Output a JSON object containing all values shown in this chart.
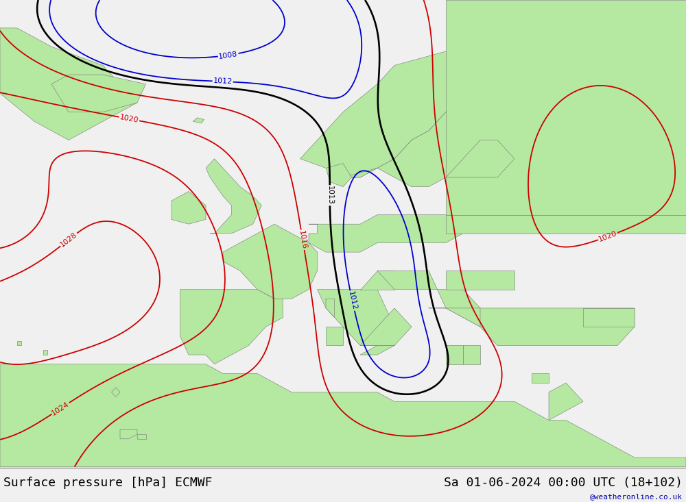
{
  "title_left": "Surface pressure [hPa] ECMWF",
  "title_right": "Sa 01-06-2024 00:00 UTC (18+102)",
  "watermark": "@weatheronline.co.uk",
  "land_color": "#b5e8a0",
  "land_edge_color": "#777777",
  "sea_color": "#d8d8d8",
  "fig_bg_color": "#f0f0f0",
  "bottom_bar_color": "#f0f0f0",
  "font_size_title": 13,
  "font_size_label": 8,
  "contour_lw_main": 1.3,
  "contour_lw_black": 1.9,
  "red_color": "#cc0000",
  "blue_color": "#0000cc",
  "black_color": "#000000",
  "watermark_color": "#0000aa"
}
